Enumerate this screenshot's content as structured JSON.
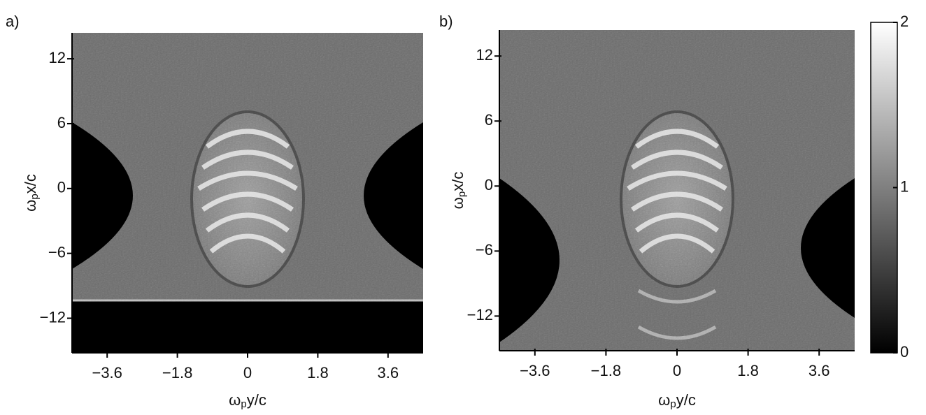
{
  "chart_data": [
    {
      "type": "heatmap",
      "panel_label": "a)",
      "colormap": "gray",
      "xlabel": [
        "ω",
        "p",
        "y/c"
      ],
      "ylabel": [
        "ω",
        "p",
        "x/c"
      ],
      "xlim": [
        -4.5,
        4.5
      ],
      "xticks": [
        -3.6,
        -1.8,
        0,
        1.8,
        3.6
      ],
      "ylim": [
        -15.2,
        14.4
      ],
      "yticks": [
        -12,
        -6,
        0,
        6,
        12
      ]
    },
    {
      "type": "heatmap",
      "panel_label": "b)",
      "colormap": "gray",
      "xlabel": [
        "ω",
        "p",
        "y/c"
      ],
      "ylabel": [
        "ω",
        "p",
        "x/c"
      ],
      "xlim": [
        -4.5,
        4.5
      ],
      "xticks": [
        -3.6,
        -1.8,
        0,
        1.8,
        3.6
      ],
      "ylim": [
        -15.2,
        14.4
      ],
      "yticks": [
        -12,
        -6,
        0,
        6,
        12
      ],
      "zlim": [
        0,
        2
      ],
      "zticks": [
        0,
        1,
        2
      ]
    }
  ]
}
